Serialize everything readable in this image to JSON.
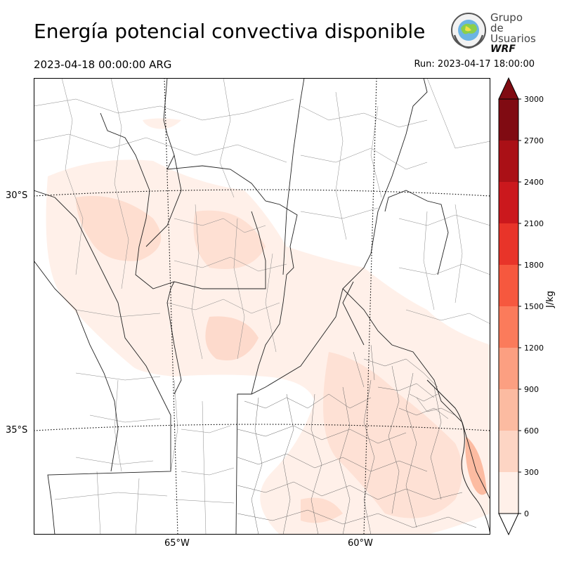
{
  "title": "Energía potencial convectiva disponible",
  "valid_time": "2023-04-18 00:00:00 ARG",
  "run_time": "Run: 2023-04-17 18:00:00",
  "logo": {
    "line1": "Grupo de",
    "line2": "Usuarios",
    "line3": "WRF"
  },
  "lat_labels": [
    "30°S",
    "35°S"
  ],
  "lon_labels": [
    "65°W",
    "60°W"
  ],
  "colorbar": {
    "unit": "J/kg",
    "ticks": [
      "0",
      "300",
      "600",
      "900",
      "1200",
      "1500",
      "1800",
      "2100",
      "2400",
      "2700",
      "3000"
    ],
    "colors": [
      "#fff0e9",
      "#fdd5c4",
      "#fcbba1",
      "#fc9f81",
      "#fb7b5b",
      "#f6583e",
      "#e83429",
      "#cb181d",
      "#aa1016",
      "#800b12"
    ]
  }
}
